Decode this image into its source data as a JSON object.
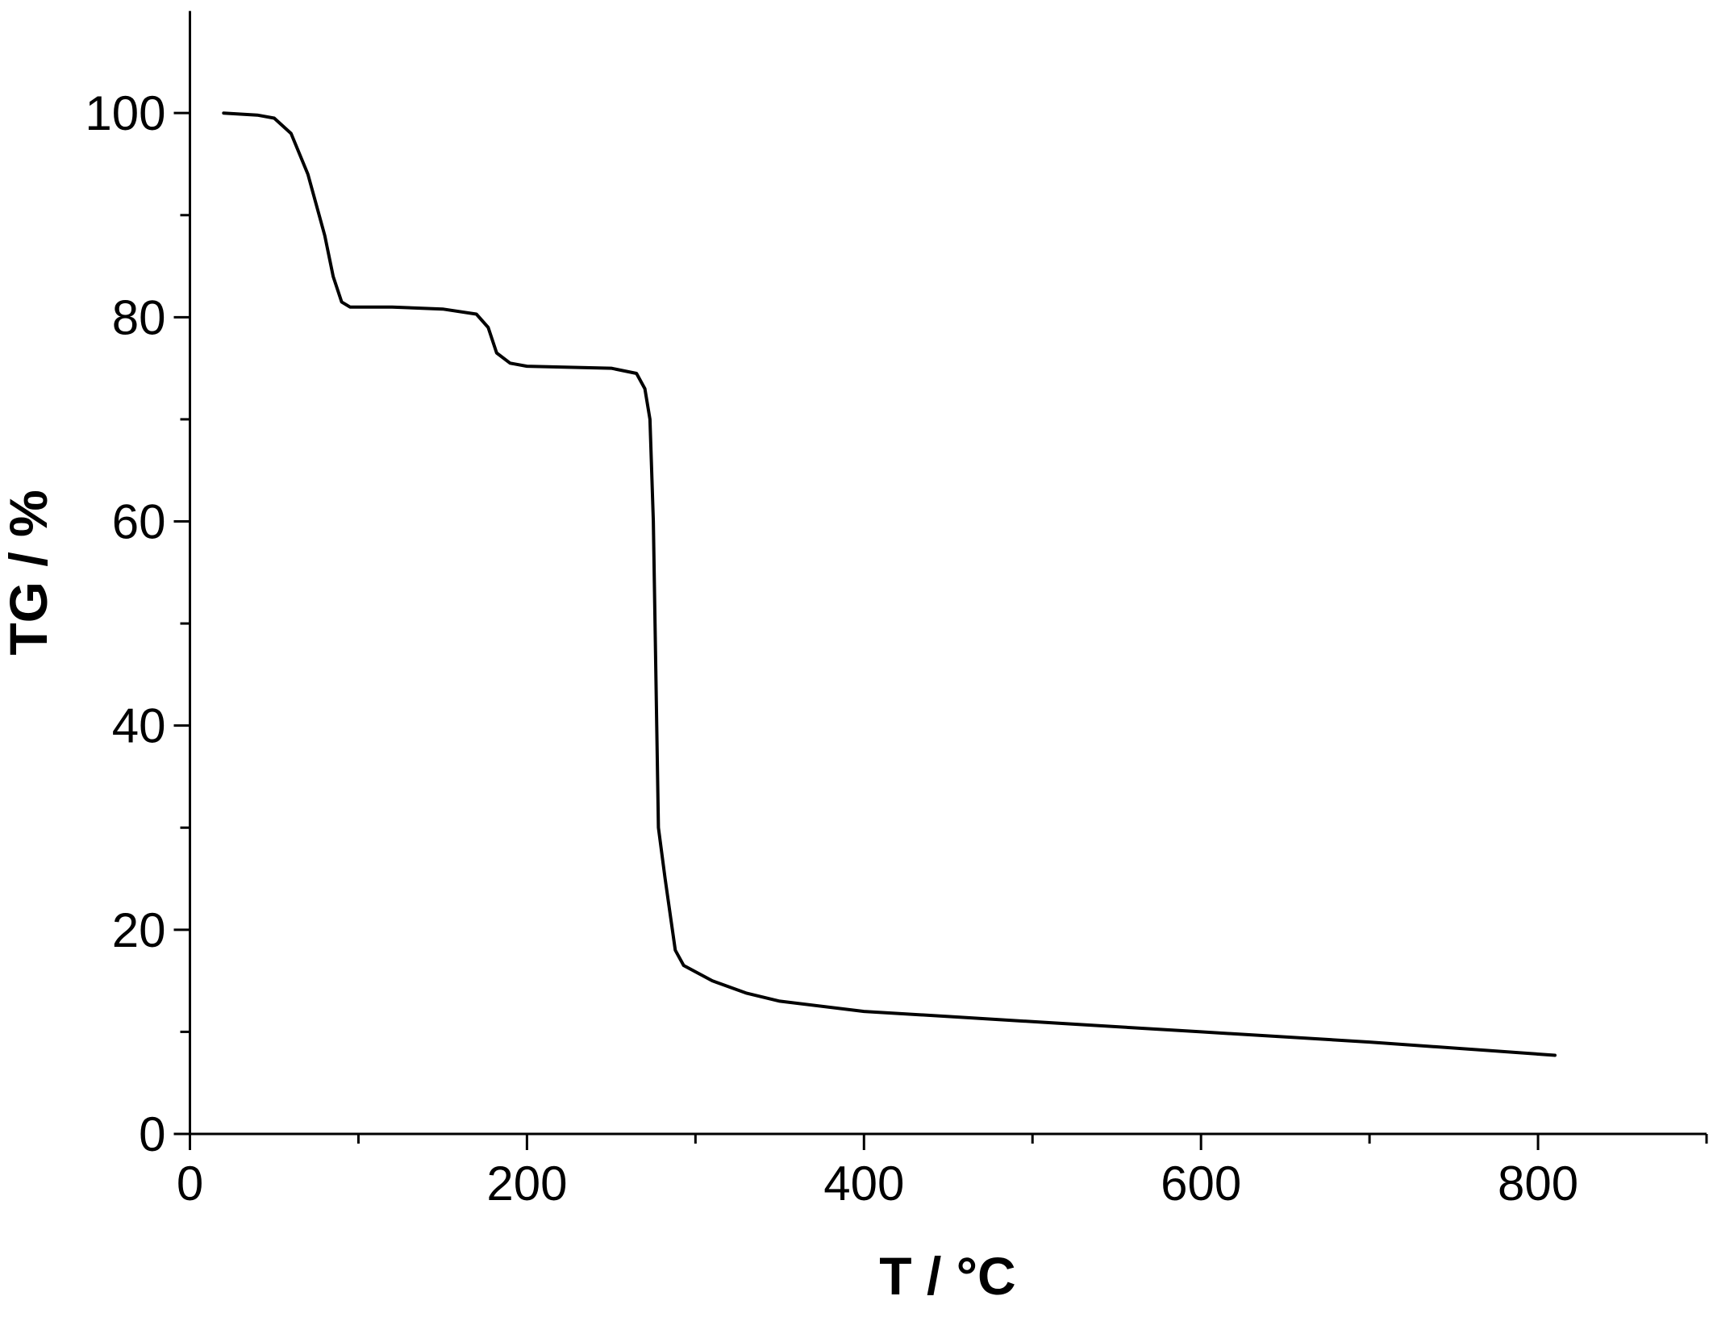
{
  "chart_data": {
    "type": "line",
    "xlabel": "T / °C",
    "ylabel": "TG / %",
    "xlim": [
      0,
      900
    ],
    "ylim": [
      0,
      110
    ],
    "xticks": [
      0,
      200,
      400,
      600,
      800
    ],
    "yticks": [
      0,
      20,
      40,
      60,
      80,
      100
    ],
    "xminor_ticks": [
      100,
      300,
      500,
      700,
      900
    ],
    "yminor_ticks": [
      10,
      30,
      50,
      70,
      90
    ],
    "grid": false,
    "x": [
      20,
      40,
      50,
      60,
      70,
      80,
      85,
      90,
      95,
      120,
      150,
      170,
      177,
      182,
      190,
      200,
      250,
      265,
      270,
      273,
      275,
      276,
      277,
      278,
      282,
      288,
      293,
      310,
      330,
      350,
      400,
      450,
      500,
      600,
      700,
      810
    ],
    "series": [
      {
        "color": "#000000",
        "values": [
          100,
          99.8,
          99.5,
          98,
          94,
          88,
          84,
          81.5,
          81,
          81,
          80.8,
          80.3,
          79,
          76.5,
          75.5,
          75.2,
          75,
          74.5,
          73,
          70,
          60,
          50,
          40,
          30,
          25,
          18,
          16.5,
          15,
          13.8,
          13,
          12,
          11.5,
          11,
          10,
          9,
          7.7
        ]
      }
    ]
  }
}
